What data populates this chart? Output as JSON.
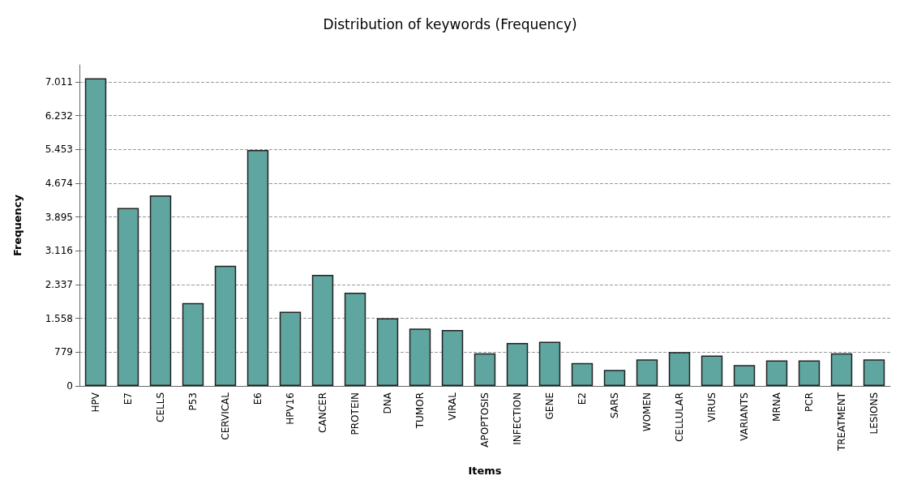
{
  "chart_data": {
    "type": "bar",
    "title": "Distribution of keywords (Frequency)",
    "xlabel": "Items",
    "ylabel": "Frequency",
    "categories": [
      "HPV",
      "E7",
      "CELLS",
      "P53",
      "CERVICAL",
      "E6",
      "HPV16",
      "CANCER",
      "PROTEIN",
      "DNA",
      "TUMOR",
      "VIRAL",
      "APOPTOSIS",
      "INFECTION",
      "GENE",
      "E2",
      "SARS",
      "WOMEN",
      "CELLULAR",
      "VIRUS",
      "VARIANTS",
      "MRNA",
      "PCR",
      "TREATMENT",
      "LESIONS"
    ],
    "values": [
      7090,
      4100,
      4390,
      1910,
      2770,
      5440,
      1710,
      2560,
      2150,
      1560,
      1320,
      1290,
      750,
      990,
      1020,
      530,
      370,
      610,
      780,
      700,
      480,
      590,
      590,
      750,
      610
    ],
    "color": "#5fa6a0",
    "ylim": [
      0,
      7400
    ],
    "yticks": [
      0,
      779,
      {
        "value": 1558,
        "label": "1.558"
      },
      {
        "value": 2337,
        "label": "2.337"
      },
      {
        "value": 3116,
        "label": "3.116"
      },
      {
        "value": 3895,
        "label": "3.895"
      },
      {
        "value": 4674,
        "label": "4.674"
      },
      {
        "value": 5453,
        "label": "5.453"
      },
      {
        "value": 6232,
        "label": "6.232"
      },
      {
        "value": 7011,
        "label": "7.011"
      }
    ],
    "grid": "y"
  }
}
